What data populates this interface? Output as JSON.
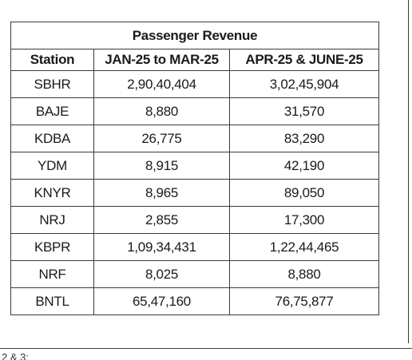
{
  "table": {
    "title": "Passenger Revenue",
    "headers": [
      "Station",
      "JAN-25 to MAR-25",
      "APR-25 & JUNE-25"
    ],
    "rows": [
      [
        "SBHR",
        "2,90,40,404",
        "3,02,45,904"
      ],
      [
        "BAJE",
        "8,880",
        "31,570"
      ],
      [
        "KDBA",
        "26,775",
        "83,290"
      ],
      [
        "YDM",
        "8,915",
        "42,190"
      ],
      [
        "KNYR",
        "8,965",
        "89,050"
      ],
      [
        "NRJ",
        "2,855",
        "17,300"
      ],
      [
        "KBPR",
        "1,09,34,431",
        "1,22,44,465"
      ],
      [
        "NRF",
        "8,025",
        "8,880"
      ],
      [
        "BNTL",
        "65,47,160",
        "76,75,877"
      ]
    ]
  },
  "footer_fragment": "2 & 3:"
}
